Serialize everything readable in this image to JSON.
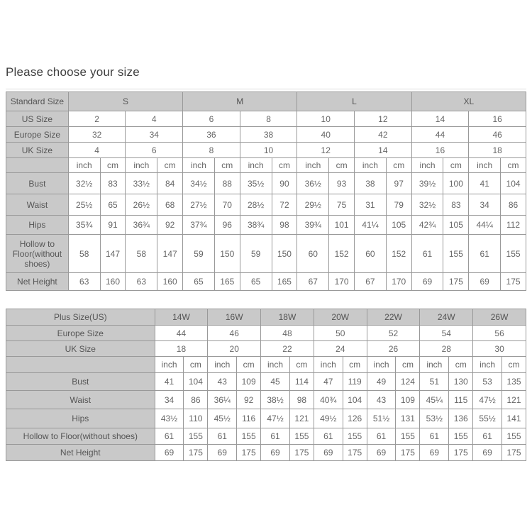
{
  "page": {
    "title": "Please choose your size"
  },
  "colors": {
    "header_bg": "#c9c9c9",
    "border_color": "#999999",
    "label_text": "#555555",
    "value_text": "#666666",
    "title_text": "#3f3f3f"
  },
  "standard_table": {
    "corner_label": "Standard Size",
    "size_groups": [
      "S",
      "M",
      "L",
      "XL"
    ],
    "size_rows": [
      {
        "label": "US Size",
        "values": [
          "2",
          "4",
          "6",
          "8",
          "10",
          "12",
          "14",
          "16"
        ]
      },
      {
        "label": "Europe Size",
        "values": [
          "32",
          "34",
          "36",
          "38",
          "40",
          "42",
          "44",
          "46"
        ]
      },
      {
        "label": "UK Size",
        "values": [
          "4",
          "6",
          "8",
          "10",
          "12",
          "14",
          "16",
          "18"
        ]
      }
    ],
    "unit_labels": [
      "inch",
      "cm"
    ],
    "measure_rows": [
      {
        "label": "Bust",
        "values": [
          "32½",
          "83",
          "33½",
          "84",
          "34½",
          "88",
          "35½",
          "90",
          "36½",
          "93",
          "38",
          "97",
          "39½",
          "100",
          "41",
          "104"
        ]
      },
      {
        "label": "Waist",
        "values": [
          "25½",
          "65",
          "26½",
          "68",
          "27½",
          "70",
          "28½",
          "72",
          "29½",
          "75",
          "31",
          "79",
          "32½",
          "83",
          "34",
          "86"
        ]
      },
      {
        "label": "Hips",
        "values": [
          "35¾",
          "91",
          "36¾",
          "92",
          "37¾",
          "96",
          "38¾",
          "98",
          "39¾",
          "101",
          "41¼",
          "105",
          "42¾",
          "105",
          "44¼",
          "112"
        ]
      },
      {
        "label": "Hollow to Floor(without shoes)",
        "values": [
          "58",
          "147",
          "58",
          "147",
          "59",
          "150",
          "59",
          "150",
          "60",
          "152",
          "60",
          "152",
          "61",
          "155",
          "61",
          "155"
        ]
      },
      {
        "label": "Net Height",
        "values": [
          "63",
          "160",
          "63",
          "160",
          "65",
          "165",
          "65",
          "165",
          "67",
          "170",
          "67",
          "170",
          "69",
          "175",
          "69",
          "175"
        ]
      }
    ]
  },
  "plus_table": {
    "corner_label": "Plus Size(US)",
    "size_groups": [
      "14W",
      "16W",
      "18W",
      "20W",
      "22W",
      "24W",
      "26W"
    ],
    "size_rows": [
      {
        "label": "Europe Size",
        "values": [
          "44",
          "46",
          "48",
          "50",
          "52",
          "54",
          "56"
        ]
      },
      {
        "label": "UK Size",
        "values": [
          "18",
          "20",
          "22",
          "24",
          "26",
          "28",
          "30"
        ]
      }
    ],
    "unit_labels": [
      "inch",
      "cm"
    ],
    "measure_rows": [
      {
        "label": "Bust",
        "values": [
          "41",
          "104",
          "43",
          "109",
          "45",
          "114",
          "47",
          "119",
          "49",
          "124",
          "51",
          "130",
          "53",
          "135"
        ]
      },
      {
        "label": "Waist",
        "values": [
          "34",
          "86",
          "36¼",
          "92",
          "38½",
          "98",
          "40¾",
          "104",
          "43",
          "109",
          "45¼",
          "115",
          "47½",
          "121"
        ]
      },
      {
        "label": "Hips",
        "values": [
          "43½",
          "110",
          "45½",
          "116",
          "47½",
          "121",
          "49½",
          "126",
          "51½",
          "131",
          "53½",
          "136",
          "55½",
          "141"
        ]
      },
      {
        "label": "Hollow to Floor(without shoes)",
        "values": [
          "61",
          "155",
          "61",
          "155",
          "61",
          "155",
          "61",
          "155",
          "61",
          "155",
          "61",
          "155",
          "61",
          "155"
        ]
      },
      {
        "label": "Net Height",
        "values": [
          "69",
          "175",
          "69",
          "175",
          "69",
          "175",
          "69",
          "175",
          "69",
          "175",
          "69",
          "175",
          "69",
          "175"
        ]
      }
    ]
  }
}
